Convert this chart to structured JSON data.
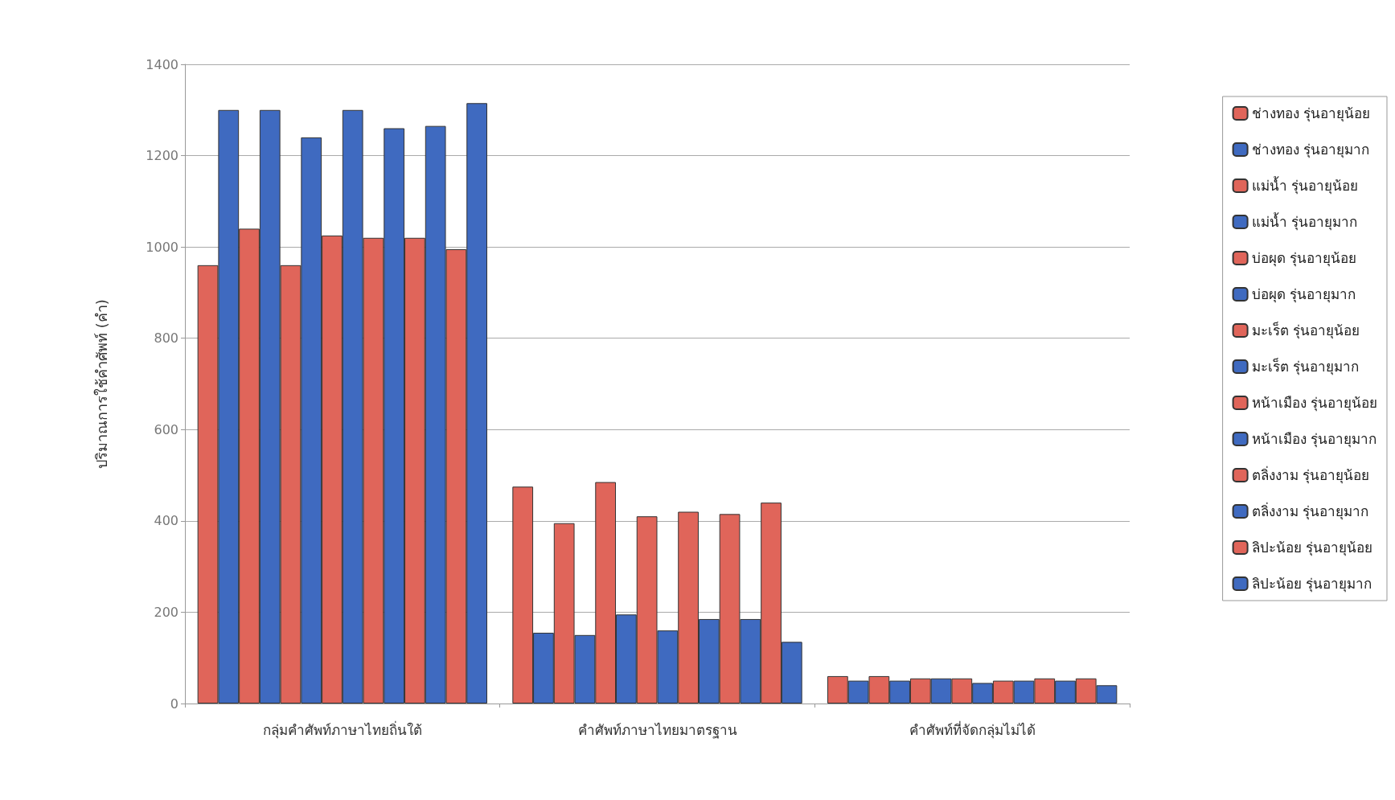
{
  "chart_data": {
    "type": "bar",
    "ylabel": "ปริมาณการใช้คำศัพท์ (คำ)",
    "categories": [
      "กลุ่มคำศัพท์ภาษาไทยถิ่นใต้",
      "คำศัพท์ภาษาไทยมาตรฐาน",
      "คำศัพท์ที่จัดกลุ่มไม่ได้"
    ],
    "series": [
      {
        "name": "ช่างทอง รุ่นอายุน้อย",
        "color": "#e0655a",
        "values": [
          960,
          475,
          60
        ]
      },
      {
        "name": "ช่างทอง รุ่นอายุมาก",
        "color": "#3f6ac0",
        "values": [
          1300,
          155,
          50
        ]
      },
      {
        "name": "แม่น้ำ รุ่นอายุน้อย",
        "color": "#e0655a",
        "values": [
          1040,
          395,
          60
        ]
      },
      {
        "name": "แม่น้ำ รุ่นอายุมาก",
        "color": "#3f6ac0",
        "values": [
          1300,
          150,
          50
        ]
      },
      {
        "name": "บ่อผุด รุ่นอายุน้อย",
        "color": "#e0655a",
        "values": [
          960,
          485,
          55
        ]
      },
      {
        "name": "บ่อผุด รุ่นอายุมาก",
        "color": "#3f6ac0",
        "values": [
          1240,
          195,
          55
        ]
      },
      {
        "name": "มะเร็ต รุ่นอายุน้อย",
        "color": "#e0655a",
        "values": [
          1025,
          410,
          55
        ]
      },
      {
        "name": "มะเร็ต รุ่นอายุมาก",
        "color": "#3f6ac0",
        "values": [
          1300,
          160,
          45
        ]
      },
      {
        "name": "หน้าเมือง รุ่นอายุน้อย",
        "color": "#e0655a",
        "values": [
          1020,
          420,
          50
        ]
      },
      {
        "name": "หน้าเมือง รุ่นอายุมาก",
        "color": "#3f6ac0",
        "values": [
          1260,
          185,
          50
        ]
      },
      {
        "name": "ตลิ่งงาม รุ่นอายุน้อย",
        "color": "#e0655a",
        "values": [
          1020,
          415,
          55
        ]
      },
      {
        "name": "ตลิ่งงาม รุ่นอายุมาก",
        "color": "#3f6ac0",
        "values": [
          1265,
          185,
          50
        ]
      },
      {
        "name": "ลิปะน้อย รุ่นอายุน้อย",
        "color": "#e0655a",
        "values": [
          995,
          440,
          55
        ]
      },
      {
        "name": "ลิปะน้อย รุ่นอายุมาก",
        "color": "#3f6ac0",
        "values": [
          1315,
          135,
          40
        ]
      }
    ],
    "ylim": [
      0,
      1400
    ],
    "yticks": [
      0,
      200,
      400,
      600,
      800,
      1000,
      1200,
      1400
    ],
    "grid": "y",
    "legend": "right"
  }
}
